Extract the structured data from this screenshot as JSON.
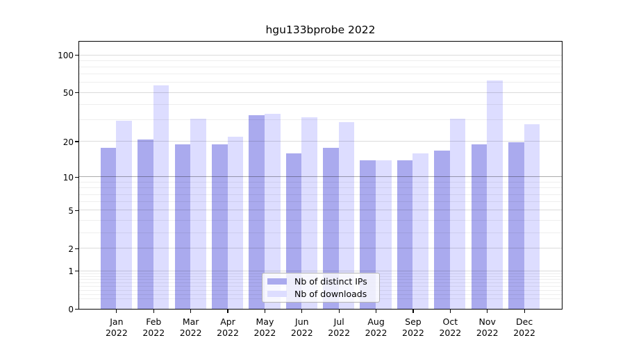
{
  "chart_data": {
    "type": "bar",
    "title": "hgu133bprobe 2022",
    "categories": [
      "Jan 2022",
      "Feb 2022",
      "Mar 2022",
      "Apr 2022",
      "May 2022",
      "Jun 2022",
      "Jul 2022",
      "Aug 2022",
      "Sep 2022",
      "Oct 2022",
      "Nov 2022",
      "Dec 2022"
    ],
    "series": [
      {
        "name": "Nb of distinct IPs",
        "color": "#aaaaee",
        "values": [
          18,
          21,
          19,
          19,
          33,
          16,
          18,
          14,
          14,
          17,
          19,
          20
        ]
      },
      {
        "name": "Nb of downloads",
        "color": "#ddddff",
        "values": [
          30,
          58,
          31,
          22,
          34,
          32,
          29,
          14,
          16,
          31,
          63,
          28
        ]
      }
    ],
    "yscale": "log1p",
    "ylim": [
      0,
      128
    ],
    "yticks": [
      0,
      1,
      2,
      5,
      10,
      20,
      50,
      100
    ],
    "ytick_labels": [
      "0",
      "1",
      "2",
      "5",
      "10",
      "20",
      "50",
      "100"
    ],
    "grid": "on",
    "gridlines": {
      "major": [
        1,
        2,
        5,
        20,
        50,
        100
      ],
      "emphasized": [
        10
      ],
      "minor": [
        0.2,
        0.3,
        0.4,
        0.5,
        0.6,
        0.7,
        0.8,
        0.9,
        3,
        4,
        6,
        7,
        8,
        9,
        30,
        40,
        60,
        70,
        80,
        90
      ]
    },
    "legend_position": "inside-lower-center"
  }
}
